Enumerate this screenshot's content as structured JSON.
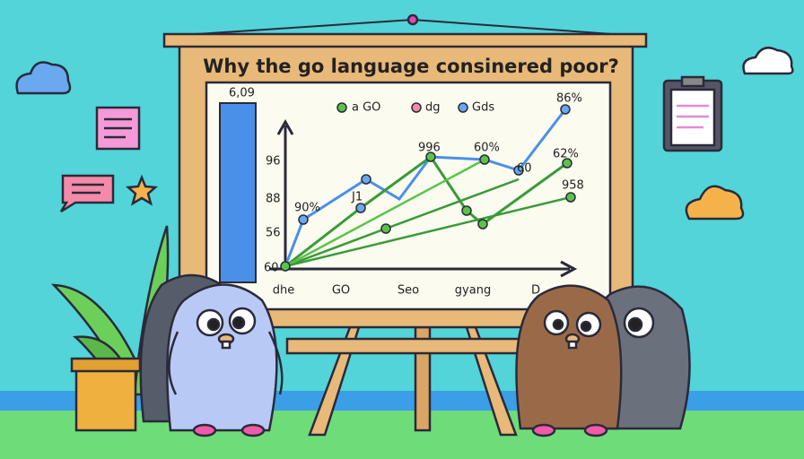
{
  "title": "Why the go language consinered poor?",
  "legend": [
    "a GO",
    "dg",
    "Gds"
  ],
  "y_labels": [
    "6,09",
    "96",
    "88",
    "56",
    "60"
  ],
  "x_labels": [
    "dhe",
    "GO",
    "Seo",
    "gyang",
    "D"
  ],
  "point_labels": [
    "90%",
    "J1",
    "996",
    "60%",
    "60",
    "86%",
    "62%",
    "958"
  ]
}
